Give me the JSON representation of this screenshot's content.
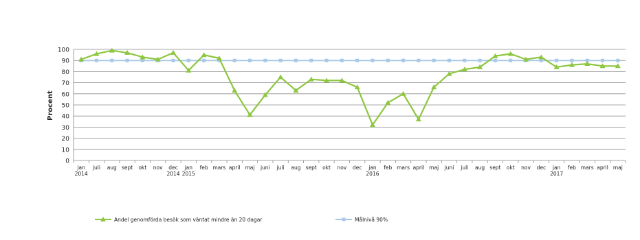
{
  "chart_data": {
    "type": "line",
    "title": "",
    "ylabel": "Procent",
    "xlabel": "",
    "ylim": [
      0,
      100
    ],
    "yticks": [
      0,
      10,
      20,
      30,
      40,
      50,
      60,
      70,
      80,
      90,
      100
    ],
    "grid": true,
    "legend_position": "bottom",
    "categories": [
      "jan",
      "juli",
      "aug",
      "sept",
      "okt",
      "nov",
      "dec",
      "jan",
      "feb",
      "mars",
      "april",
      "maj",
      "juni",
      "juli",
      "aug",
      "sept",
      "okt",
      "nov",
      "dec",
      "jan",
      "feb",
      "mars",
      "april",
      "maj",
      "juni",
      "juli",
      "aug",
      "sept",
      "okt",
      "nov",
      "dec",
      "jan",
      "feb",
      "mars",
      "april",
      "maj"
    ],
    "year_labels": [
      {
        "index": 0,
        "text": "2014"
      },
      {
        "index": 6,
        "text": "2014"
      },
      {
        "index": 7,
        "text": "2015"
      },
      {
        "index": 19,
        "text": "2016"
      },
      {
        "index": 31,
        "text": "2017"
      }
    ],
    "series": [
      {
        "name": "Andel genomförda besök som väntat mindre än 20 dagar",
        "color": "#8dc63f",
        "marker": "triangle",
        "values": [
          91,
          96,
          99,
          97,
          93,
          91,
          97,
          81,
          95,
          92,
          63,
          41,
          59,
          75,
          63,
          73,
          72,
          72,
          66,
          32,
          52,
          60,
          37,
          66,
          78,
          82,
          84,
          94,
          96,
          91,
          93,
          84,
          86,
          87,
          85,
          85
        ]
      },
      {
        "name": "Målnivå 90%",
        "color": "#a9c8e8",
        "marker": "square",
        "values": [
          90,
          90,
          90,
          90,
          90,
          90,
          90,
          90,
          90,
          90,
          90,
          90,
          90,
          90,
          90,
          90,
          90,
          90,
          90,
          90,
          90,
          90,
          90,
          90,
          90,
          90,
          90,
          90,
          90,
          90,
          90,
          90,
          90,
          90,
          90,
          90
        ]
      }
    ]
  }
}
